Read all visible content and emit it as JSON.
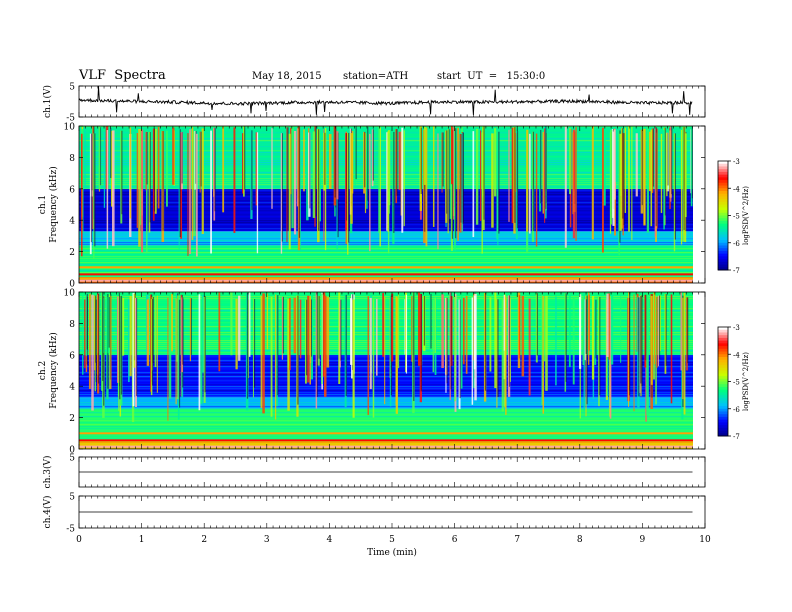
{
  "header": {
    "title": "VLF  Spectra",
    "date": "May 18, 2015",
    "station": "station=ATH",
    "start": "start  UT  =   15:30:0"
  },
  "colors": {
    "colormap": [
      "#00007f",
      "#0000ff",
      "#00c0ff",
      "#00ff80",
      "#c8ff00",
      "#ffb000",
      "#ff0000",
      "#ffffff"
    ],
    "trace": "#000000"
  },
  "chart_data": [
    {
      "type": "line",
      "name": "ch1-waveform",
      "ylabel": "ch.1(V)",
      "ylim": [
        -5,
        5
      ],
      "yticks": [
        "5",
        "-5"
      ],
      "x": [
        0,
        0.5,
        1,
        1.5,
        2,
        2.5,
        3,
        3.5,
        4,
        4.5,
        5,
        5.5,
        6,
        6.5,
        7,
        7.5,
        8,
        8.5,
        9,
        9.5,
        9.8
      ],
      "y": [
        0.5,
        0.2,
        0.0,
        -0.2,
        -0.5,
        -0.7,
        -0.5,
        -0.3,
        -0.2,
        -0.4,
        -0.6,
        -0.3,
        -0.1,
        -0.2,
        -0.1,
        0.0,
        0.1,
        -0.2,
        -0.5,
        -0.4,
        -0.3
      ]
    },
    {
      "type": "heatmap",
      "name": "ch1-spectrogram",
      "ylabel": "ch.1\nFrequency  (kHz)",
      "ylim": [
        0,
        10
      ],
      "yticks": [
        "0",
        "2",
        "4",
        "6",
        "8",
        "10"
      ],
      "xlim": [
        0,
        9.8
      ],
      "colorbar": {
        "label": "logPSD(V^2/Hz)",
        "ticks": [
          "-3",
          "-4",
          "-5",
          "-6",
          "-7"
        ],
        "range": [
          -7,
          -3
        ]
      },
      "rows": [
        {
          "f": [
            0,
            0.4
          ],
          "v": -4.0
        },
        {
          "f": [
            0.4,
            2.4
          ],
          "v": -5.3
        },
        {
          "f": [
            2.4,
            3.3
          ],
          "v": -5.8
        },
        {
          "f": [
            3.3,
            6.0
          ],
          "v": -6.6
        },
        {
          "f": [
            6.0,
            10.0
          ],
          "v": -5.4
        }
      ]
    },
    {
      "type": "heatmap",
      "name": "ch2-spectrogram",
      "ylabel": "ch.2\nFrequency  (kHz)",
      "ylim": [
        0,
        10
      ],
      "yticks": [
        "0",
        "2",
        "4",
        "6",
        "8",
        "10"
      ],
      "xlim": [
        0,
        9.8
      ],
      "colorbar": {
        "label": "logPSD(V^2/Hz)",
        "ticks": [
          "-3",
          "-4",
          "-5",
          "-6",
          "-7"
        ],
        "range": [
          -7,
          -3
        ]
      },
      "rows": [
        {
          "f": [
            0,
            0.5
          ],
          "v": -4.4
        },
        {
          "f": [
            0.5,
            2.6
          ],
          "v": -5.2
        },
        {
          "f": [
            2.6,
            3.3
          ],
          "v": -5.9
        },
        {
          "f": [
            3.3,
            6.0
          ],
          "v": -6.4
        },
        {
          "f": [
            6.0,
            10.0
          ],
          "v": -5.3
        }
      ]
    },
    {
      "type": "line",
      "name": "ch3-waveform",
      "ylabel": "ch.3(V)",
      "ylim": [
        -5,
        5
      ],
      "yticks": [
        "5"
      ],
      "x": [
        0,
        9.8
      ],
      "y": [
        0,
        0
      ]
    },
    {
      "type": "line",
      "name": "ch4-waveform",
      "ylabel": "ch.4(V)",
      "ylim": [
        -5,
        5
      ],
      "yticks": [
        "5",
        "-5"
      ],
      "x": [
        0,
        9.8
      ],
      "y": [
        0,
        0
      ]
    }
  ],
  "xaxis": {
    "label": "Time  (min)",
    "xlim": [
      0,
      10
    ],
    "ticks": [
      "0",
      "1",
      "2",
      "3",
      "4",
      "5",
      "6",
      "7",
      "8",
      "9",
      "10"
    ]
  }
}
